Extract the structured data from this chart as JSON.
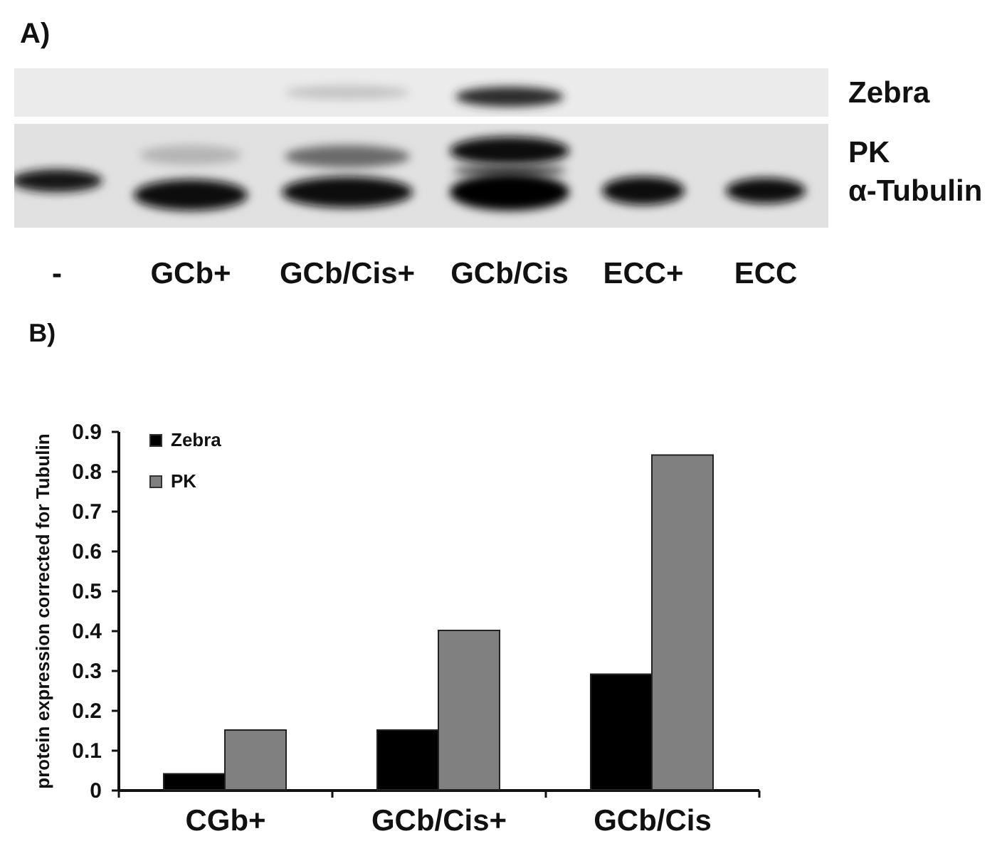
{
  "chart_data": [
    {
      "type": "other",
      "title": "A)",
      "categories": [
        "-",
        "GCb+",
        "GCb/Cis+",
        "GCb/Cis",
        "ECC+",
        "ECC"
      ],
      "annotations": [
        "Zebra",
        "PK",
        "α-Tubulin"
      ]
    },
    {
      "type": "bar",
      "title": "B)",
      "ylabel": "protein expression corrected for Tubulin",
      "categories": [
        "CGb+",
        "GCb/Cis+",
        "GCb/Cis"
      ],
      "series": [
        {
          "name": "Zebra",
          "color": "#000000",
          "values": [
            0.04,
            0.15,
            0.29
          ]
        },
        {
          "name": "PK",
          "color": "#808080",
          "values": [
            0.15,
            0.4,
            0.84
          ]
        }
      ],
      "ylim": [
        0,
        0.9
      ],
      "yticks": [
        0,
        0.1,
        0.2,
        0.3,
        0.4,
        0.5,
        0.6,
        0.7,
        0.8,
        0.9
      ],
      "grid": false,
      "legend": "top left"
    }
  ]
}
